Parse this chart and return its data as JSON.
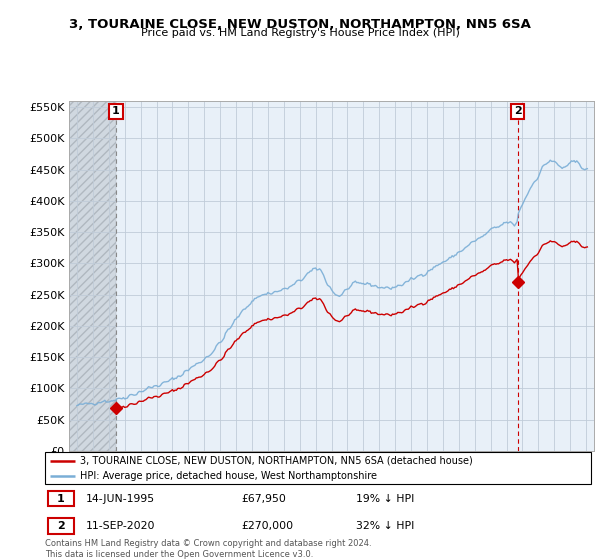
{
  "title": "3, TOURAINE CLOSE, NEW DUSTON, NORTHAMPTON, NN5 6SA",
  "subtitle": "Price paid vs. HM Land Registry's House Price Index (HPI)",
  "legend_line1": "3, TOURAINE CLOSE, NEW DUSTON, NORTHAMPTON, NN5 6SA (detached house)",
  "legend_line2": "HPI: Average price, detached house, West Northamptonshire",
  "annotation1_label": "1",
  "annotation1_date": "14-JUN-1995",
  "annotation1_price": "£67,950",
  "annotation1_note": "19% ↓ HPI",
  "annotation2_label": "2",
  "annotation2_date": "11-SEP-2020",
  "annotation2_price": "£270,000",
  "annotation2_note": "32% ↓ HPI",
  "footer": "Contains HM Land Registry data © Crown copyright and database right 2024.\nThis data is licensed under the Open Government Licence v3.0.",
  "sale1_year": 1995.45,
  "sale1_value": 67950,
  "sale2_year": 2020.71,
  "sale2_value": 270000,
  "hpi_color": "#7aaed6",
  "price_color": "#cc0000",
  "vline1_color": "#888888",
  "vline2_color": "#cc0000",
  "bg_plot_color": "#e8f0f8",
  "bg_hatch_color": "#d0d8e0",
  "grid_color": "#c0ccd8",
  "ylim_min": 0,
  "ylim_max": 560000,
  "xlim_min": 1992.5,
  "xlim_max": 2025.5,
  "yticks": [
    0,
    50000,
    100000,
    150000,
    200000,
    250000,
    300000,
    350000,
    400000,
    450000,
    500000,
    550000
  ]
}
